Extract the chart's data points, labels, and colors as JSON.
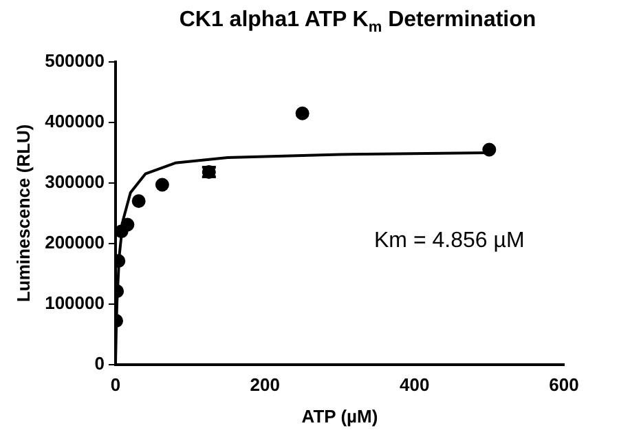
{
  "chart_data": {
    "type": "scatter",
    "title": "CK1 alpha1 ATP K$_{m}$ Determination",
    "xlabel": "ATP (µM)",
    "ylabel": "Luminescence (RLU)",
    "xlim": [
      0,
      600
    ],
    "xticks": [
      0,
      200,
      400,
      600
    ],
    "ylim": [
      0,
      500000
    ],
    "yticks": [
      0,
      100000,
      200000,
      300000,
      400000,
      500000
    ],
    "grid": false,
    "legend": false,
    "marker": "circle",
    "annotations": [
      "Km = 4.856 µM"
    ],
    "series": [
      {
        "color": "#000000",
        "x": [
          1,
          2,
          4,
          8,
          16,
          31,
          62.5,
          125,
          250,
          500
        ],
        "values": [
          72000,
          121000,
          171000,
          220000,
          231000,
          270000,
          297000,
          318000,
          415000,
          355000
        ],
        "errors": [
          null,
          null,
          null,
          null,
          null,
          null,
          null,
          8000,
          null,
          null
        ]
      },
      {
        "type": "line",
        "color": "#000000",
        "marker": "none",
        "x": [
          0,
          1,
          2,
          5,
          10,
          20,
          40,
          80,
          150,
          300,
          500
        ],
        "values": [
          0,
          60000,
          103000,
          179000,
          238000,
          284000,
          315000,
          333000,
          342000,
          347000,
          350000
        ]
      }
    ]
  }
}
